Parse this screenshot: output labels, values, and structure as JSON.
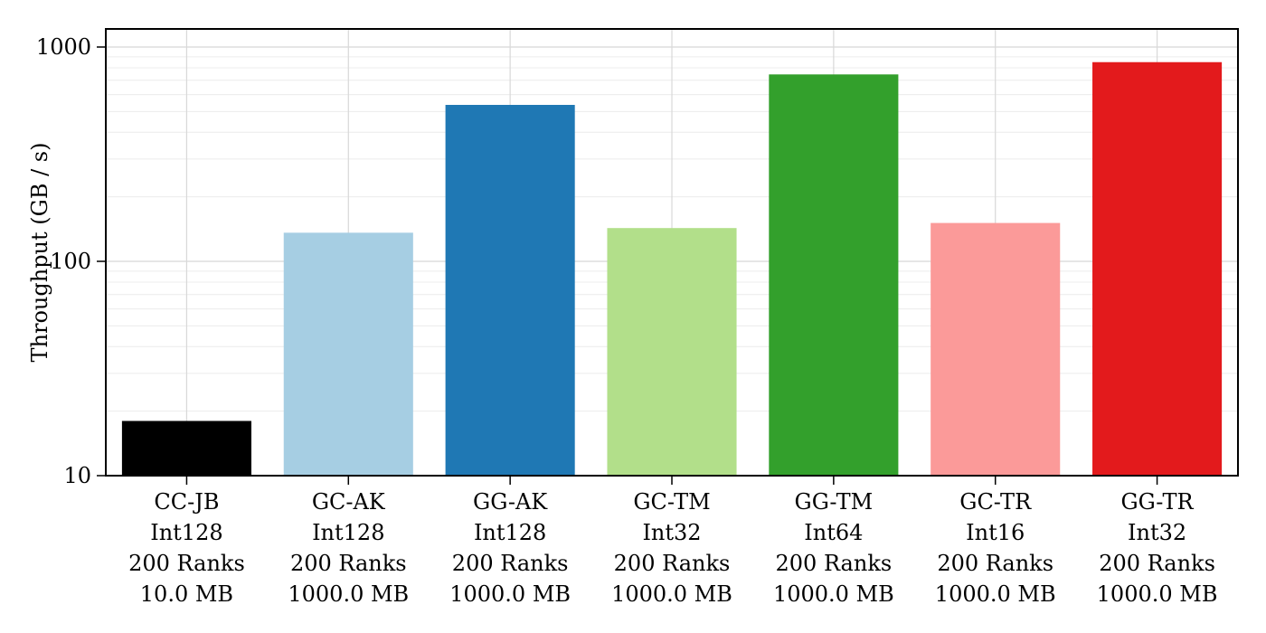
{
  "chart_data": {
    "type": "bar",
    "title": "",
    "xlabel": "",
    "ylabel": "Throughput (GB / s)",
    "yscale": "log",
    "ylim": [
      10,
      1200
    ],
    "yticks": [
      10,
      100,
      1000
    ],
    "ytick_labels": [
      "10",
      "100",
      "1000"
    ],
    "grid": true,
    "legend": "none",
    "categories": [
      [
        "CC-JB",
        "Int128",
        "200 Ranks",
        "10.0 MB"
      ],
      [
        "GC-AK",
        "Int128",
        "200 Ranks",
        "1000.0 MB"
      ],
      [
        "GG-AK",
        "Int128",
        "200 Ranks",
        "1000.0 MB"
      ],
      [
        "GC-TM",
        "Int32",
        "200 Ranks",
        "1000.0 MB"
      ],
      [
        "GG-TM",
        "Int64",
        "200 Ranks",
        "1000.0 MB"
      ],
      [
        "GC-TR",
        "Int16",
        "200 Ranks",
        "1000.0 MB"
      ],
      [
        "GG-TR",
        "Int32",
        "200 Ranks",
        "1000.0 MB"
      ]
    ],
    "values": [
      18,
      136,
      537,
      143,
      745,
      151,
      850
    ],
    "colors": [
      "#000000",
      "#a6cee3",
      "#1f78b4",
      "#b2df8a",
      "#33a02c",
      "#fb9a99",
      "#e31a1c"
    ]
  }
}
